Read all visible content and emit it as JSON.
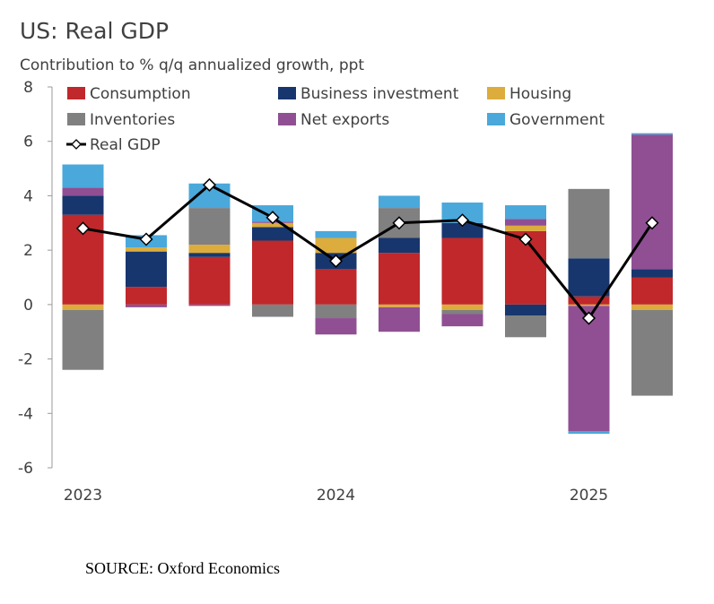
{
  "header": {
    "title": "US: Real GDP",
    "subtitle": "Contribution to % q/q annualized growth, ppt"
  },
  "source": "SOURCE: Oxford Economics",
  "chart_data": {
    "type": "bar",
    "stacked": true,
    "title": "US: Real GDP",
    "subtitle": "Contribution to % q/q annualized growth, ppt",
    "quarters": [
      "2023 Q1",
      "2023 Q2",
      "2023 Q3",
      "2023 Q4",
      "2024 Q1",
      "2024 Q2",
      "2024 Q3",
      "2024 Q4",
      "2025 Q1",
      "2025 Q2"
    ],
    "x_tick_labels": [
      {
        "label": "2023",
        "index": 0
      },
      {
        "label": "2024",
        "index": 4
      },
      {
        "label": "2025",
        "index": 8
      }
    ],
    "ylim": [
      -6,
      8
    ],
    "yticks": [
      -6,
      -4,
      -2,
      0,
      2,
      4,
      6,
      8
    ],
    "grid": false,
    "legend_position": "top",
    "series": [
      {
        "name": "Consumption",
        "color": "#c0282b",
        "values": [
          3.3,
          0.65,
          1.75,
          2.35,
          1.3,
          1.9,
          2.45,
          2.7,
          0.3,
          1.0
        ]
      },
      {
        "name": "Business investment",
        "color": "#17366e",
        "values": [
          0.7,
          1.3,
          0.15,
          0.5,
          0.6,
          0.55,
          0.55,
          -0.4,
          1.4,
          0.3
        ]
      },
      {
        "name": "Housing",
        "color": "#dcac3c",
        "values": [
          -0.2,
          0.15,
          0.3,
          0.15,
          0.55,
          -0.1,
          -0.2,
          0.2,
          -0.05,
          -0.2
        ]
      },
      {
        "name": "Inventories",
        "color": "#808080",
        "values": [
          -2.2,
          0.0,
          1.35,
          -0.45,
          -0.5,
          1.1,
          -0.15,
          -0.8,
          2.55,
          -3.15
        ]
      },
      {
        "name": "Net exports",
        "color": "#904f93",
        "values": [
          0.3,
          -0.1,
          -0.05,
          0.05,
          -0.6,
          -0.9,
          -0.45,
          0.25,
          -4.6,
          4.95
        ]
      },
      {
        "name": "Government",
        "color": "#4aa8db",
        "values": [
          0.85,
          0.45,
          0.9,
          0.6,
          0.25,
          0.45,
          0.75,
          0.5,
          -0.1,
          0.05
        ]
      }
    ],
    "line": {
      "name": "Real GDP",
      "color": "#000000",
      "values": [
        2.8,
        2.4,
        4.4,
        3.2,
        1.6,
        3.0,
        3.1,
        2.4,
        -0.5,
        3.0
      ]
    }
  }
}
